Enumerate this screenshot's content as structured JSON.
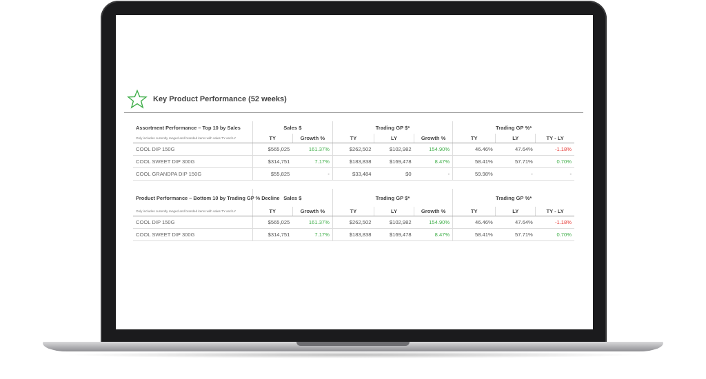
{
  "page_title": "Key Product Performance (52 weeks)",
  "colors": {
    "positive": "#3fae49",
    "negative": "#e53935",
    "star": "#3fae49"
  },
  "icons": {
    "title": "star-icon"
  },
  "column_groups": {
    "sales": "Sales $",
    "gp": "Trading GP $*",
    "gp_pct": "Trading GP %*"
  },
  "columns": [
    "TY",
    "Growth %",
    "TY",
    "LY",
    "Growth %",
    "TY",
    "LY",
    "TY - LY"
  ],
  "tables": [
    {
      "title": "Assortment Performance – Top 10 by Sales",
      "note": "Only includes currently ranged and branded items with sales TY and LY",
      "rows": [
        {
          "name": "COOL DIP 150G",
          "values": [
            "$565,025",
            "161.37%",
            "$262,502",
            "$102,982",
            "154.90%",
            "46.46%",
            "47.64%",
            "-1.18%"
          ]
        },
        {
          "name": "COOL SWEET DIP 300G",
          "values": [
            "$314,751",
            "7.17%",
            "$183,838",
            "$169,478",
            "8.47%",
            "58.41%",
            "57.71%",
            "0.70%"
          ]
        },
        {
          "name": "COOL GRANDPA DIP 150G",
          "values": [
            "$55,825",
            "-",
            "$33,484",
            "$0",
            "-",
            "59.98%",
            "-",
            "-"
          ]
        }
      ]
    },
    {
      "title": "Product Performance – Bottom 10 by Trading GP % Decline",
      "note": "Only includes currently ranged and branded items with sales TY and LY",
      "rows": [
        {
          "name": "COOL DIP 150G",
          "values": [
            "$565,025",
            "161.37%",
            "$262,502",
            "$102,982",
            "154.90%",
            "46.46%",
            "47.64%",
            "-1.18%"
          ]
        },
        {
          "name": "COOL SWEET DIP 300G",
          "values": [
            "$314,751",
            "7.17%",
            "$183,838",
            "$169,478",
            "8.47%",
            "58.41%",
            "57.71%",
            "0.70%"
          ]
        }
      ]
    }
  ]
}
